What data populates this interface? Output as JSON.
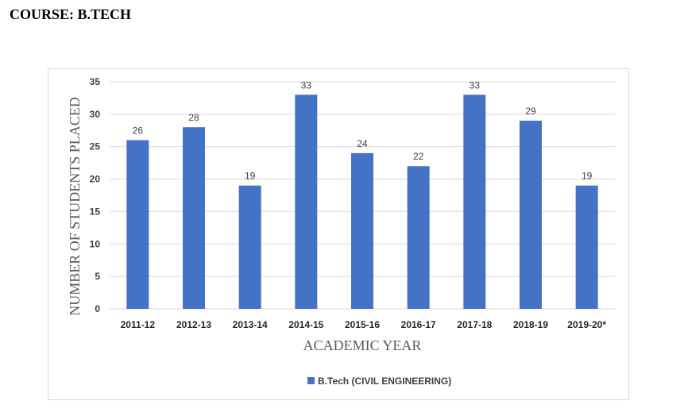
{
  "heading": "COURSE: B.TECH",
  "chart_data": {
    "type": "bar",
    "categories": [
      "2011-12",
      "2012-13",
      "2013-14",
      "2014-15",
      "2015-16",
      "2016-17",
      "2017-18",
      "2018-19",
      "2019-20*"
    ],
    "series": [
      {
        "name": "B.Tech (CIVIL ENGINEERING)",
        "values": [
          26,
          28,
          19,
          33,
          24,
          22,
          33,
          29,
          19
        ],
        "color": "#4472c4"
      }
    ],
    "xlabel": "ACADEMIC YEAR",
    "ylabel": "NUMBER OF STUDENTS PLACED",
    "ylim": [
      0,
      35
    ],
    "yticks": [
      0,
      5,
      10,
      15,
      20,
      25,
      30,
      35
    ],
    "grid": true,
    "data_labels": true,
    "legend_position": "bottom"
  }
}
